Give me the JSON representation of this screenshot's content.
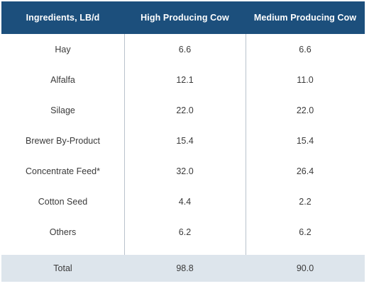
{
  "table": {
    "headers": [
      "Ingredients, LB/d",
      "High Producing Cow",
      "Medium Producing Cow"
    ],
    "rows": [
      [
        "Hay",
        "6.6",
        "6.6"
      ],
      [
        "Alfalfa",
        "12.1",
        "11.0"
      ],
      [
        "Silage",
        "22.0",
        "22.0"
      ],
      [
        "Brewer By-Product",
        "15.4",
        "15.4"
      ],
      [
        "Concentrate Feed*",
        "32.0",
        "26.4"
      ],
      [
        "Cotton Seed",
        "4.4",
        "2.2"
      ],
      [
        "Others",
        "6.2",
        "6.2"
      ]
    ],
    "total": [
      "Total",
      "98.8",
      "90.0"
    ]
  },
  "colors": {
    "header_bg": "#1c4f7c",
    "header_text": "#ffffff",
    "total_bg": "#dde5ec",
    "divider": "#b9c2cc"
  }
}
